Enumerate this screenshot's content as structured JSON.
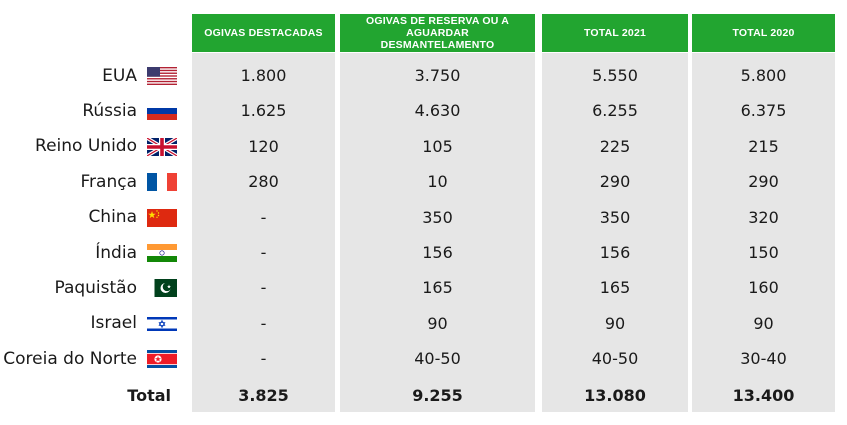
{
  "headers": [
    "OGIVAS DESTACADAS",
    "OGIVAS DE RESERVA OU A AGUARDAR DESMANTELAMENTO",
    "TOTAL 2021",
    "TOTAL 2020"
  ],
  "rows": [
    {
      "country": "EUA",
      "flag": "usa-flag",
      "deployed": "1.800",
      "reserve": "3.750",
      "total2021": "5.550",
      "total2020": "5.800"
    },
    {
      "country": "Rússia",
      "flag": "russia-flag",
      "deployed": "1.625",
      "reserve": "4.630",
      "total2021": "6.255",
      "total2020": "6.375"
    },
    {
      "country": "Reino Unido",
      "flag": "uk-flag",
      "deployed": "120",
      "reserve": "105",
      "total2021": "225",
      "total2020": "215"
    },
    {
      "country": "França",
      "flag": "france-flag",
      "deployed": "280",
      "reserve": "10",
      "total2021": "290",
      "total2020": "290"
    },
    {
      "country": "China",
      "flag": "china-flag",
      "deployed": "-",
      "reserve": "350",
      "total2021": "350",
      "total2020": "320"
    },
    {
      "country": "Índia",
      "flag": "india-flag",
      "deployed": "-",
      "reserve": "156",
      "total2021": "156",
      "total2020": "150"
    },
    {
      "country": "Paquistão",
      "flag": "pakistan-flag",
      "deployed": "-",
      "reserve": "165",
      "total2021": "165",
      "total2020": "160"
    },
    {
      "country": "Israel",
      "flag": "israel-flag",
      "deployed": "-",
      "reserve": "90",
      "total2021": "90",
      "total2020": "90"
    },
    {
      "country": "Coreia do Norte",
      "flag": "north-korea-flag",
      "deployed": "-",
      "reserve": "40-50",
      "total2021": "40-50",
      "total2020": "30-40"
    }
  ],
  "total": {
    "label": "Total",
    "deployed": "3.825",
    "reserve": "9.255",
    "total2021": "13.080",
    "total2020": "13.400"
  },
  "colors": {
    "header_green": "#22a530",
    "column_gray": "#e6e6e6"
  }
}
